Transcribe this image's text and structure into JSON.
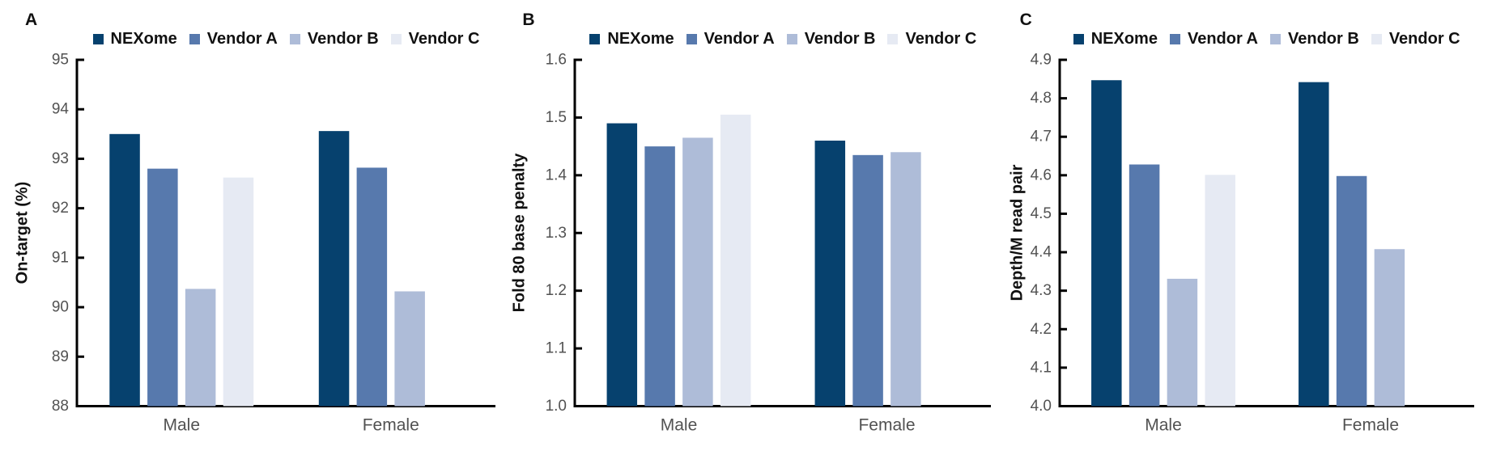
{
  "figure": {
    "legend_items": [
      {
        "label": "NEXome",
        "color": "#06416E"
      },
      {
        "label": "Vendor A",
        "color": "#5779AD"
      },
      {
        "label": "Vendor B",
        "color": "#AEBCD8"
      },
      {
        "label": "Vendor C",
        "color": "#E6EAF3"
      }
    ],
    "text_color": "#111111",
    "tick_label_color": "#525252",
    "axis_color": "#000000",
    "background": "#ffffff"
  },
  "chart_data": [
    {
      "type": "bar",
      "panel_label": "A",
      "ylabel": "On-target (%)",
      "xlabel": "",
      "ylim": [
        88,
        95
      ],
      "ytick_step": 1,
      "ytick_decimals": 0,
      "grid": false,
      "legend_position": "top",
      "categories": [
        "Male",
        "Female"
      ],
      "series": [
        {
          "name": "NEXome",
          "values": [
            93.5,
            93.56
          ]
        },
        {
          "name": "Vendor A",
          "values": [
            92.8,
            92.82
          ]
        },
        {
          "name": "Vendor B",
          "values": [
            90.37,
            90.32
          ]
        },
        {
          "name": "Vendor C",
          "values": [
            92.62,
            null
          ]
        }
      ]
    },
    {
      "type": "bar",
      "panel_label": "B",
      "ylabel": "Fold 80 base penalty",
      "xlabel": "",
      "ylim": [
        1.0,
        1.6
      ],
      "ytick_step": 0.1,
      "ytick_decimals": 1,
      "grid": false,
      "legend_position": "top",
      "categories": [
        "Male",
        "Female"
      ],
      "series": [
        {
          "name": "NEXome",
          "values": [
            1.49,
            1.46
          ]
        },
        {
          "name": "Vendor A",
          "values": [
            1.45,
            1.435
          ]
        },
        {
          "name": "Vendor B",
          "values": [
            1.465,
            1.44
          ]
        },
        {
          "name": "Vendor C",
          "values": [
            1.505,
            null
          ]
        }
      ]
    },
    {
      "type": "bar",
      "panel_label": "C",
      "ylabel": "Depth/M read pair",
      "xlabel": "",
      "ylim": [
        4.0,
        4.9
      ],
      "ytick_step": 0.1,
      "ytick_decimals": 1,
      "grid": false,
      "legend_position": "top",
      "categories": [
        "Male",
        "Female"
      ],
      "series": [
        {
          "name": "NEXome",
          "values": [
            4.847,
            4.842
          ]
        },
        {
          "name": "Vendor A",
          "values": [
            4.628,
            4.598
          ]
        },
        {
          "name": "Vendor B",
          "values": [
            4.331,
            4.408
          ]
        },
        {
          "name": "Vendor C",
          "values": [
            4.601,
            null
          ]
        }
      ]
    }
  ]
}
